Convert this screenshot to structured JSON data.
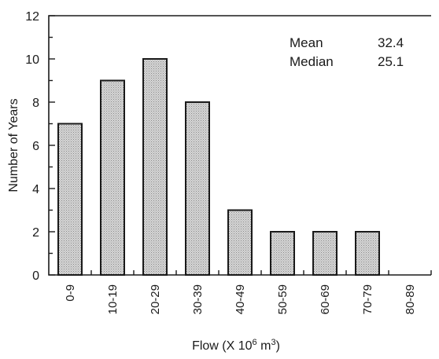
{
  "chart_data": {
    "type": "bar",
    "title": "",
    "xlabel": {
      "prefix": "Flow  (X 10",
      "sup": "6",
      "middle": " m",
      "sup2": "3",
      "suffix": ")"
    },
    "ylabel": "Number of Years",
    "categories": [
      "0-9",
      "10-19",
      "20-29",
      "30-39",
      "40-49",
      "50-59",
      "60-69",
      "70-79",
      "80-89"
    ],
    "values": [
      7,
      9,
      10,
      8,
      3,
      2,
      2,
      2,
      0
    ],
    "ylim": [
      0,
      12
    ],
    "yticks": [
      0,
      2,
      4,
      6,
      8,
      10,
      12
    ],
    "grid": false,
    "annotations": [
      {
        "label": "Mean",
        "value": "32.4"
      },
      {
        "label": "Median",
        "value": "25.1"
      }
    ],
    "colors": {
      "bar_fill": "#c8c8c8",
      "bar_edge": "#1a1a1a",
      "axis": "#1a1a1a"
    }
  }
}
